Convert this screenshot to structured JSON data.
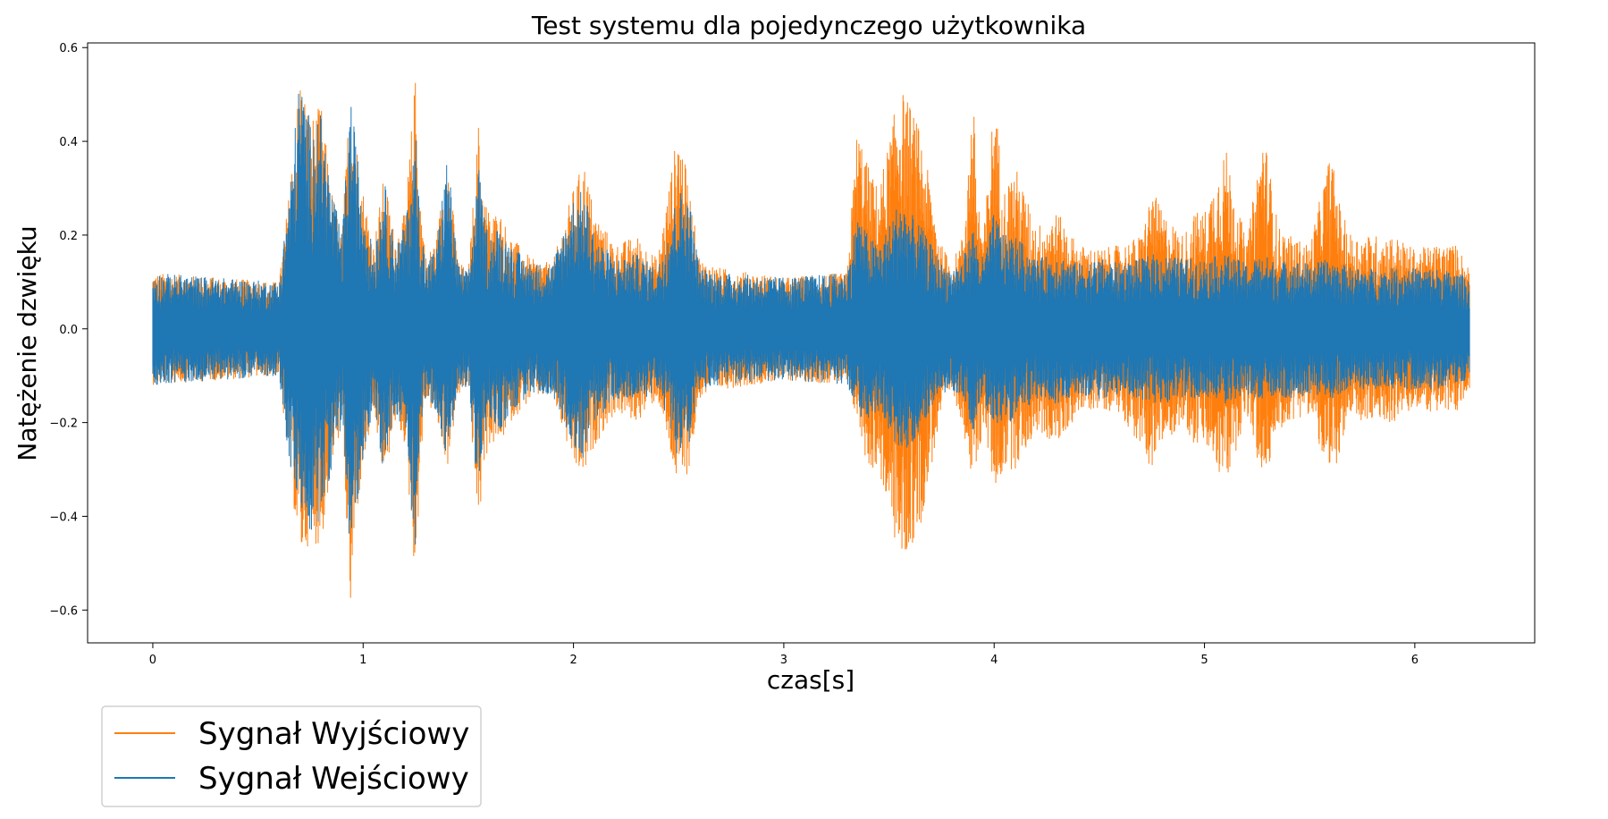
{
  "chart_data": {
    "type": "line",
    "title": "Test systemu dla pojedynczego użytkownika",
    "xlabel": "czas[s]",
    "ylabel": "Natężenie dzwięku",
    "xlim": [
      -0.31,
      6.57
    ],
    "ylim": [
      -0.67,
      0.61
    ],
    "x_ticks": [
      0,
      1,
      2,
      3,
      4,
      5,
      6
    ],
    "y_ticks": [
      -0.6,
      -0.4,
      -0.2,
      0.0,
      0.2,
      0.4,
      0.6
    ],
    "x_tick_labels": [
      "0",
      "1",
      "2",
      "3",
      "4",
      "5",
      "6"
    ],
    "y_tick_labels": [
      "−0.6",
      "−0.4",
      "−0.2",
      "0.0",
      "0.2",
      "0.4",
      "0.6"
    ],
    "grid": false,
    "legend_position": "below-left",
    "x_range_data": [
      0,
      6.26
    ],
    "series": [
      {
        "name": "Sygnał Wyjściowy",
        "color": "#ff7f0e",
        "envelope_x": [
          0,
          0.6,
          0.65,
          0.7,
          0.75,
          0.8,
          0.85,
          0.9,
          0.94,
          0.97,
          1.0,
          1.05,
          1.1,
          1.15,
          1.2,
          1.25,
          1.27,
          1.3,
          1.35,
          1.4,
          1.45,
          1.5,
          1.55,
          1.57,
          1.6,
          1.65,
          1.7,
          1.8,
          1.9,
          2.0,
          2.05,
          2.1,
          2.2,
          2.3,
          2.4,
          2.5,
          2.55,
          2.6,
          2.7,
          3.0,
          3.3,
          3.35,
          3.4,
          3.45,
          3.5,
          3.55,
          3.6,
          3.65,
          3.7,
          3.75,
          3.8,
          3.85,
          3.9,
          3.92,
          3.95,
          4.0,
          4.05,
          4.1,
          4.2,
          4.3,
          4.4,
          4.5,
          4.6,
          4.7,
          4.75,
          4.8,
          4.9,
          4.95,
          5.0,
          5.1,
          5.2,
          5.28,
          5.35,
          5.4,
          5.5,
          5.6,
          5.65,
          5.7,
          5.8,
          5.9,
          6.0,
          6.1,
          6.2,
          6.26
        ],
        "envelope_max": [
          0.12,
          0.1,
          0.3,
          0.55,
          0.45,
          0.48,
          0.3,
          0.2,
          0.54,
          0.4,
          0.3,
          0.18,
          0.33,
          0.2,
          0.25,
          0.55,
          0.3,
          0.15,
          0.2,
          0.38,
          0.15,
          0.12,
          0.45,
          0.3,
          0.25,
          0.25,
          0.2,
          0.15,
          0.14,
          0.3,
          0.36,
          0.25,
          0.18,
          0.2,
          0.15,
          0.44,
          0.3,
          0.15,
          0.13,
          0.11,
          0.12,
          0.44,
          0.35,
          0.3,
          0.4,
          0.52,
          0.48,
          0.42,
          0.3,
          0.18,
          0.14,
          0.2,
          0.5,
          0.3,
          0.2,
          0.5,
          0.3,
          0.35,
          0.22,
          0.25,
          0.18,
          0.17,
          0.18,
          0.2,
          0.3,
          0.25,
          0.2,
          0.25,
          0.25,
          0.39,
          0.18,
          0.43,
          0.22,
          0.2,
          0.18,
          0.38,
          0.25,
          0.2,
          0.2,
          0.2,
          0.17,
          0.18,
          0.18,
          0.13
        ],
        "envelope_min": [
          -0.12,
          -0.1,
          -0.3,
          -0.5,
          -0.45,
          -0.47,
          -0.3,
          -0.2,
          -0.62,
          -0.4,
          -0.3,
          -0.18,
          -0.33,
          -0.2,
          -0.25,
          -0.55,
          -0.3,
          -0.15,
          -0.2,
          -0.3,
          -0.15,
          -0.12,
          -0.45,
          -0.3,
          -0.25,
          -0.25,
          -0.2,
          -0.15,
          -0.14,
          -0.3,
          -0.32,
          -0.25,
          -0.18,
          -0.2,
          -0.15,
          -0.35,
          -0.3,
          -0.15,
          -0.13,
          -0.11,
          -0.12,
          -0.2,
          -0.3,
          -0.3,
          -0.4,
          -0.5,
          -0.48,
          -0.42,
          -0.3,
          -0.18,
          -0.14,
          -0.2,
          -0.35,
          -0.3,
          -0.2,
          -0.35,
          -0.3,
          -0.3,
          -0.22,
          -0.25,
          -0.18,
          -0.17,
          -0.18,
          -0.26,
          -0.3,
          -0.25,
          -0.2,
          -0.25,
          -0.25,
          -0.34,
          -0.18,
          -0.34,
          -0.22,
          -0.2,
          -0.18,
          -0.34,
          -0.25,
          -0.2,
          -0.2,
          -0.2,
          -0.17,
          -0.18,
          -0.18,
          -0.13
        ]
      },
      {
        "name": "Sygnał Wejściowy",
        "color": "#1f77b4",
        "envelope_x": [
          0,
          0.6,
          0.65,
          0.7,
          0.75,
          0.8,
          0.85,
          0.9,
          0.94,
          0.97,
          1.0,
          1.05,
          1.1,
          1.15,
          1.2,
          1.25,
          1.27,
          1.3,
          1.35,
          1.4,
          1.45,
          1.5,
          1.55,
          1.57,
          1.6,
          1.65,
          1.7,
          1.8,
          1.9,
          2.0,
          2.05,
          2.1,
          2.2,
          2.3,
          2.4,
          2.5,
          2.55,
          2.6,
          2.7,
          3.0,
          3.3,
          3.35,
          3.4,
          3.45,
          3.5,
          3.55,
          3.6,
          3.65,
          3.7,
          3.75,
          3.8,
          3.85,
          3.9,
          3.92,
          3.95,
          4.0,
          4.05,
          4.1,
          4.2,
          4.3,
          4.4,
          4.5,
          4.6,
          4.7,
          4.75,
          4.8,
          4.9,
          4.95,
          5.0,
          5.1,
          5.2,
          5.28,
          5.35,
          5.4,
          5.5,
          5.6,
          5.65,
          5.7,
          5.8,
          5.9,
          6.0,
          6.1,
          6.2,
          6.26
        ],
        "envelope_max": [
          0.12,
          0.1,
          0.3,
          0.55,
          0.44,
          0.46,
          0.3,
          0.2,
          0.5,
          0.38,
          0.28,
          0.16,
          0.32,
          0.18,
          0.22,
          0.42,
          0.25,
          0.14,
          0.18,
          0.38,
          0.14,
          0.12,
          0.35,
          0.25,
          0.2,
          0.22,
          0.18,
          0.14,
          0.14,
          0.28,
          0.3,
          0.2,
          0.15,
          0.16,
          0.13,
          0.3,
          0.28,
          0.13,
          0.12,
          0.11,
          0.12,
          0.25,
          0.2,
          0.18,
          0.22,
          0.28,
          0.25,
          0.22,
          0.18,
          0.14,
          0.13,
          0.15,
          0.22,
          0.18,
          0.15,
          0.25,
          0.2,
          0.2,
          0.15,
          0.16,
          0.14,
          0.15,
          0.14,
          0.15,
          0.16,
          0.16,
          0.15,
          0.15,
          0.15,
          0.16,
          0.14,
          0.16,
          0.14,
          0.15,
          0.14,
          0.15,
          0.14,
          0.13,
          0.13,
          0.13,
          0.13,
          0.13,
          0.12,
          0.11
        ],
        "envelope_min": [
          -0.12,
          -0.1,
          -0.3,
          -0.38,
          -0.45,
          -0.4,
          -0.3,
          -0.2,
          -0.52,
          -0.38,
          -0.28,
          -0.16,
          -0.32,
          -0.18,
          -0.22,
          -0.5,
          -0.25,
          -0.14,
          -0.18,
          -0.28,
          -0.14,
          -0.12,
          -0.38,
          -0.25,
          -0.2,
          -0.22,
          -0.18,
          -0.14,
          -0.14,
          -0.25,
          -0.28,
          -0.2,
          -0.15,
          -0.16,
          -0.13,
          -0.28,
          -0.26,
          -0.13,
          -0.12,
          -0.11,
          -0.12,
          -0.18,
          -0.2,
          -0.18,
          -0.22,
          -0.28,
          -0.25,
          -0.22,
          -0.18,
          -0.14,
          -0.13,
          -0.15,
          -0.22,
          -0.18,
          -0.15,
          -0.22,
          -0.2,
          -0.2,
          -0.15,
          -0.16,
          -0.14,
          -0.15,
          -0.14,
          -0.15,
          -0.16,
          -0.16,
          -0.15,
          -0.15,
          -0.15,
          -0.16,
          -0.14,
          -0.16,
          -0.14,
          -0.15,
          -0.14,
          -0.15,
          -0.14,
          -0.13,
          -0.13,
          -0.13,
          -0.13,
          -0.13,
          -0.12,
          -0.11
        ]
      }
    ]
  }
}
